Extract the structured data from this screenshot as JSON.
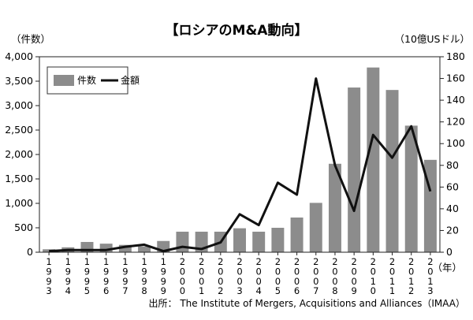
{
  "title": "【ロシアのM&A動向】",
  "left_unit": "（件数）",
  "right_unit": "（10億USドル）",
  "x_unit": "（年）",
  "source": "出所： The Institute of Mergers, Acquisitions and Alliances（IMAA）",
  "chart_data": {
    "type": "bar",
    "title": "【ロシアのM&A動向】",
    "categories": [
      "1993",
      "1994",
      "1995",
      "1996",
      "1997",
      "1998",
      "1999",
      "2000",
      "2001",
      "2002",
      "2003",
      "2004",
      "2005",
      "2006",
      "2007",
      "2008",
      "2009",
      "2010",
      "2011",
      "2012",
      "2013"
    ],
    "series": [
      {
        "name": "件数",
        "type": "bar",
        "axis": "left",
        "color": "#8c8c8c",
        "values": [
          60,
          100,
          210,
          175,
          150,
          120,
          230,
          420,
          420,
          420,
          490,
          420,
          500,
          710,
          1010,
          1810,
          3370,
          3780,
          3320,
          2590,
          1890
        ]
      },
      {
        "name": "金額",
        "type": "line",
        "axis": "right",
        "color": "#111111",
        "values": [
          1,
          2,
          2,
          2,
          5,
          7,
          1,
          5,
          3,
          9,
          35,
          25,
          64,
          53,
          160,
          80,
          38,
          108,
          87,
          116,
          56
        ]
      }
    ],
    "y_left": {
      "min": 0,
      "max": 4000,
      "ticks": [
        "0",
        "500",
        "1,000",
        "1,500",
        "2,000",
        "2,500",
        "3,000",
        "3,500",
        "4,000"
      ]
    },
    "y_right": {
      "min": 0,
      "max": 180,
      "ticks": [
        "0",
        "20",
        "40",
        "60",
        "80",
        "100",
        "120",
        "140",
        "160",
        "180"
      ]
    },
    "grid": false,
    "legend": "top-left"
  }
}
